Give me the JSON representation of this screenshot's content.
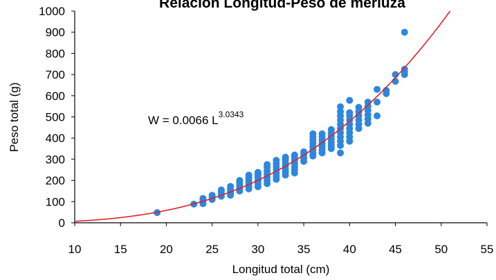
{
  "chart_data": {
    "type": "scatter",
    "title": "Relación Longitud-Peso de merluza",
    "xlabel": "Longitud total (cm)",
    "ylabel": "Peso total (g)",
    "xlim": [
      10,
      55
    ],
    "ylim": [
      0,
      1000
    ],
    "x_ticks": [
      10,
      15,
      20,
      25,
      30,
      35,
      40,
      45,
      50,
      55
    ],
    "y_ticks": [
      0,
      100,
      200,
      300,
      400,
      500,
      600,
      700,
      800,
      900,
      1000
    ],
    "grid": false,
    "legend": "none",
    "colors": {
      "points": "#2e86de",
      "fit_line": "#e0202a",
      "axis": "#000000"
    },
    "fit": {
      "model": "power",
      "a": 0.0066,
      "b": 3.0343,
      "label_prefix": "W = 0.0066 L",
      "label_exponent": "3.0343"
    },
    "series": [
      {
        "type": "scatter",
        "points": [
          [
            19,
            48
          ],
          [
            23,
            88
          ],
          [
            24,
            90
          ],
          [
            24,
            103
          ],
          [
            24,
            115
          ],
          [
            25,
            110
          ],
          [
            25,
            120
          ],
          [
            25,
            130
          ],
          [
            26,
            125
          ],
          [
            26,
            135
          ],
          [
            26,
            145
          ],
          [
            26,
            155
          ],
          [
            27,
            130
          ],
          [
            27,
            140
          ],
          [
            27,
            150
          ],
          [
            27,
            160
          ],
          [
            27,
            172
          ],
          [
            28,
            150
          ],
          [
            28,
            162
          ],
          [
            28,
            175
          ],
          [
            28,
            188
          ],
          [
            28,
            200
          ],
          [
            29,
            160
          ],
          [
            29,
            172
          ],
          [
            29,
            185
          ],
          [
            29,
            198
          ],
          [
            29,
            212
          ],
          [
            29,
            225
          ],
          [
            30,
            170
          ],
          [
            30,
            185
          ],
          [
            30,
            200
          ],
          [
            30,
            215
          ],
          [
            30,
            228
          ],
          [
            30,
            238
          ],
          [
            31,
            185
          ],
          [
            31,
            200
          ],
          [
            31,
            215
          ],
          [
            31,
            230
          ],
          [
            31,
            245
          ],
          [
            31,
            262
          ],
          [
            31,
            275
          ],
          [
            32,
            205
          ],
          [
            32,
            220
          ],
          [
            32,
            235
          ],
          [
            32,
            250
          ],
          [
            32,
            265
          ],
          [
            32,
            280
          ],
          [
            32,
            295
          ],
          [
            33,
            225
          ],
          [
            33,
            240
          ],
          [
            33,
            255
          ],
          [
            33,
            270
          ],
          [
            33,
            285
          ],
          [
            33,
            300
          ],
          [
            33,
            310
          ],
          [
            34,
            235
          ],
          [
            34,
            250
          ],
          [
            34,
            265
          ],
          [
            34,
            280
          ],
          [
            34,
            295
          ],
          [
            34,
            310
          ],
          [
            34,
            320
          ],
          [
            35,
            290
          ],
          [
            35,
            305
          ],
          [
            35,
            320
          ],
          [
            35,
            335
          ],
          [
            36,
            315
          ],
          [
            36,
            330
          ],
          [
            36,
            345
          ],
          [
            36,
            360
          ],
          [
            36,
            375
          ],
          [
            36,
            390
          ],
          [
            36,
            405
          ],
          [
            36,
            420
          ],
          [
            37,
            330
          ],
          [
            37,
            345
          ],
          [
            37,
            360
          ],
          [
            37,
            375
          ],
          [
            37,
            390
          ],
          [
            37,
            405
          ],
          [
            37,
            420
          ],
          [
            38,
            350
          ],
          [
            38,
            365
          ],
          [
            38,
            380
          ],
          [
            38,
            395
          ],
          [
            38,
            410
          ],
          [
            38,
            425
          ],
          [
            38,
            440
          ],
          [
            39,
            330
          ],
          [
            39,
            365
          ],
          [
            39,
            385
          ],
          [
            39,
            405
          ],
          [
            39,
            425
          ],
          [
            39,
            445
          ],
          [
            39,
            465
          ],
          [
            39,
            485
          ],
          [
            39,
            505
          ],
          [
            39,
            525
          ],
          [
            39,
            548
          ],
          [
            40,
            385
          ],
          [
            40,
            405
          ],
          [
            40,
            425
          ],
          [
            40,
            445
          ],
          [
            40,
            465
          ],
          [
            40,
            485
          ],
          [
            40,
            505
          ],
          [
            40,
            520
          ],
          [
            40,
            578
          ],
          [
            41,
            445
          ],
          [
            41,
            465
          ],
          [
            41,
            485
          ],
          [
            41,
            505
          ],
          [
            41,
            525
          ],
          [
            41,
            545
          ],
          [
            42,
            470
          ],
          [
            42,
            490
          ],
          [
            42,
            510
          ],
          [
            42,
            530
          ],
          [
            42,
            550
          ],
          [
            42,
            570
          ],
          [
            43,
            505
          ],
          [
            43,
            570
          ],
          [
            43,
            630
          ],
          [
            44,
            610
          ],
          [
            44,
            625
          ],
          [
            45,
            668
          ],
          [
            45,
            700
          ],
          [
            46,
            700
          ],
          [
            46,
            713
          ],
          [
            46,
            725
          ],
          [
            46,
            900
          ]
        ]
      }
    ]
  }
}
